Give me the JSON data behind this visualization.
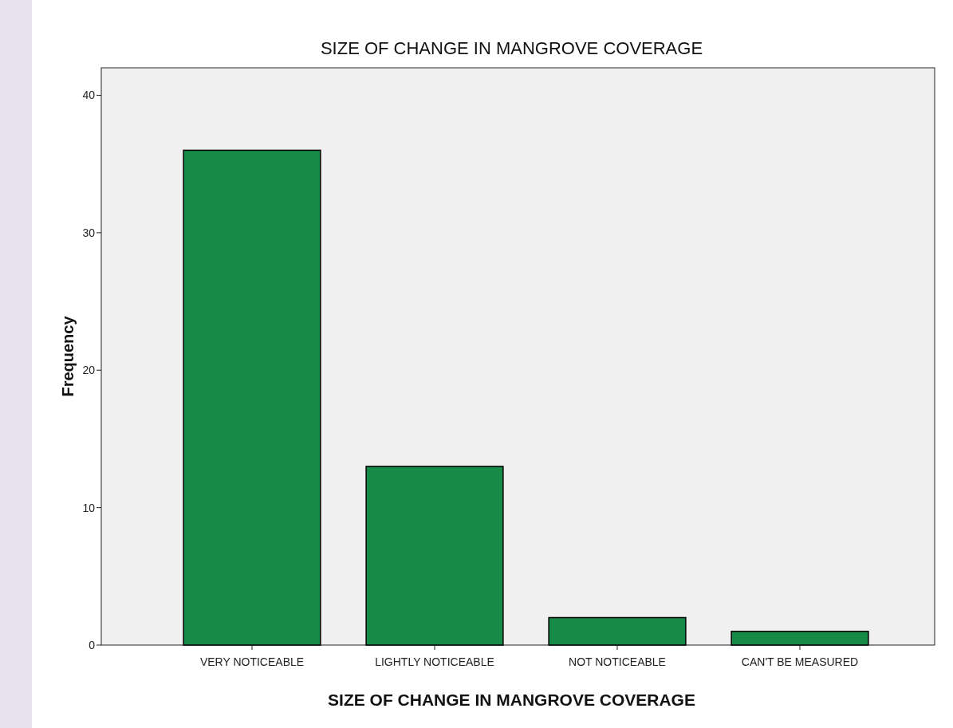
{
  "chart_data": {
    "type": "bar",
    "title": "SIZE OF CHANGE IN MANGROVE COVERAGE",
    "xlabel": "SIZE OF CHANGE IN MANGROVE COVERAGE",
    "ylabel": "Frequency",
    "categories": [
      "VERY NOTICEABLE",
      "LIGHTLY NOTICEABLE",
      "NOT NOTICEABLE",
      "CAN'T BE MEASURED"
    ],
    "values": [
      36,
      13,
      2,
      1
    ],
    "color": "#168a47",
    "ylim": [
      0,
      42
    ],
    "yticks": [
      0,
      10,
      20,
      30,
      40
    ],
    "grid": false
  }
}
